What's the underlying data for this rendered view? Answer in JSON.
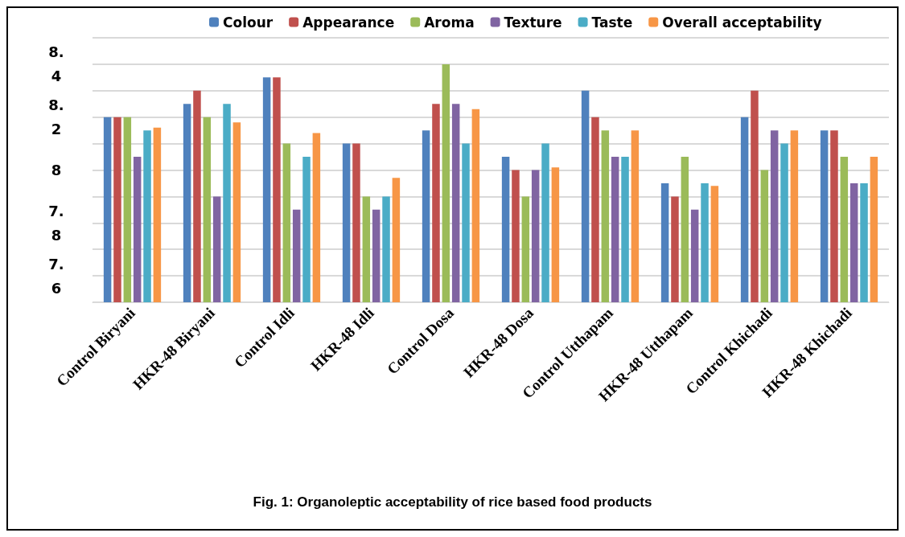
{
  "chart_data": {
    "type": "bar",
    "title": "Fig. 1: Organoleptic acceptability of rice based food products",
    "categories": [
      "Control Biryani",
      "HKR-48 Biryani",
      "Control Idli",
      "HKR-48 Idli",
      "Control Dosa",
      "HKR-48 Dosa",
      "Control Utthapam",
      "HKR-48 Utthapam",
      "Control Khichadi",
      "HKR-48 Khichadi"
    ],
    "series": [
      {
        "name": "Colour",
        "color": "#4f81bd",
        "values": [
          8.2,
          8.25,
          8.35,
          8.1,
          8.15,
          8.05,
          8.3,
          7.95,
          8.2,
          8.15
        ]
      },
      {
        "name": "Appearance",
        "color": "#c0504d",
        "values": [
          8.2,
          8.3,
          8.35,
          8.1,
          8.25,
          8.0,
          8.2,
          7.9,
          8.3,
          8.15
        ]
      },
      {
        "name": "Aroma",
        "color": "#9bbb59",
        "values": [
          8.2,
          8.2,
          8.1,
          7.9,
          8.4,
          7.9,
          8.15,
          8.05,
          8.0,
          8.05
        ]
      },
      {
        "name": "Texture",
        "color": "#8064a2",
        "values": [
          8.05,
          7.9,
          7.85,
          7.85,
          8.25,
          8.0,
          8.05,
          7.85,
          8.15,
          7.95
        ]
      },
      {
        "name": "Taste",
        "color": "#4bacc6",
        "values": [
          8.15,
          8.25,
          8.05,
          7.9,
          8.1,
          8.1,
          8.05,
          7.95,
          8.1,
          7.95
        ]
      },
      {
        "name": "Overall acceptability",
        "color": "#f79646",
        "values": [
          8.16,
          8.18,
          8.14,
          7.97,
          8.23,
          8.01,
          8.15,
          7.94,
          8.15,
          8.05
        ]
      }
    ],
    "ylim": [
      7.5,
      8.5
    ],
    "yticks": [
      {
        "value": 7.5,
        "label": null
      },
      7.6,
      {
        "value": 7.7,
        "label": null
      },
      7.8,
      {
        "value": 7.9,
        "label": null
      },
      8,
      {
        "value": 8.1,
        "label": null
      },
      8.2,
      {
        "value": 8.3,
        "label": null
      },
      8.4,
      {
        "value": 8.5,
        "label": null
      }
    ],
    "grid": "y",
    "legend": "top"
  }
}
